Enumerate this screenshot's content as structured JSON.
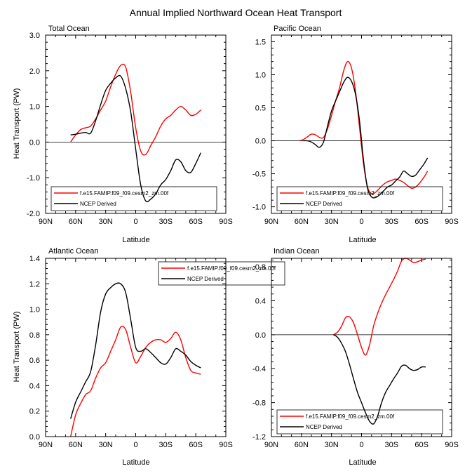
{
  "figure": {
    "title": "Annual Implied Northward Ocean Heat Transport"
  },
  "chart_data": [
    {
      "type": "line",
      "title": "Total Ocean",
      "xlabel": "Latitude",
      "ylabel": "Heat Transport (PW)",
      "xlim": [
        90,
        -90
      ],
      "ylim": [
        -2.0,
        3.0
      ],
      "xticks": [
        90,
        60,
        30,
        0,
        -30,
        -60,
        -90
      ],
      "xtick_labels": [
        "90N",
        "60N",
        "30N",
        "0",
        "30S",
        "60S",
        "90S"
      ],
      "yticks": [
        -2,
        -1,
        0,
        1,
        2,
        3
      ],
      "ytick_labels": [
        "-2.0",
        "-1.0",
        "0.0",
        "1.0",
        "2.0",
        "3.0"
      ],
      "zero_line": true,
      "legend": {
        "position": "bottom-left",
        "entries": [
          "f.e15.FAMIP.f09_f09.cesm2_zm.00f",
          "NCEP Derived"
        ]
      },
      "series": [
        {
          "name": "f.e15.FAMIP.f09_f09.cesm2_zm.00f",
          "color": "#ff0000",
          "x": [
            65,
            60,
            55,
            50,
            45,
            40,
            35,
            30,
            25,
            20,
            15,
            10,
            5,
            0,
            -5,
            -10,
            -15,
            -20,
            -25,
            -30,
            -35,
            -40,
            -45,
            -50,
            -55,
            -60,
            -65
          ],
          "y": [
            0.0,
            0.2,
            0.35,
            0.4,
            0.45,
            0.65,
            0.9,
            1.15,
            1.55,
            1.9,
            2.15,
            2.1,
            1.4,
            0.4,
            -0.25,
            -0.35,
            -0.1,
            0.15,
            0.45,
            0.65,
            0.75,
            0.9,
            1.0,
            0.9,
            0.75,
            0.78,
            0.9
          ]
        },
        {
          "name": "NCEP Derived",
          "color": "#000000",
          "x": [
            65,
            60,
            55,
            50,
            45,
            40,
            35,
            30,
            25,
            20,
            15,
            10,
            5,
            0,
            -5,
            -10,
            -15,
            -20,
            -25,
            -30,
            -35,
            -40,
            -45,
            -50,
            -55,
            -60,
            -65
          ],
          "y": [
            0.2,
            0.22,
            0.25,
            0.27,
            0.25,
            0.6,
            1.05,
            1.45,
            1.65,
            1.8,
            1.85,
            1.5,
            0.85,
            -0.2,
            -1.2,
            -1.65,
            -1.6,
            -1.45,
            -1.2,
            -1.05,
            -0.8,
            -0.5,
            -0.55,
            -0.8,
            -0.85,
            -0.6,
            -0.3
          ]
        }
      ]
    },
    {
      "type": "line",
      "title": "Pacific Ocean",
      "xlabel": "Latitude",
      "ylabel": "",
      "xlim": [
        90,
        -90
      ],
      "ylim": [
        -1.1,
        1.6
      ],
      "xticks": [
        90,
        60,
        30,
        0,
        -30,
        -60,
        -90
      ],
      "xtick_labels": [
        "90N",
        "60N",
        "30N",
        "0",
        "30S",
        "60S",
        "90S"
      ],
      "yticks": [
        -1,
        -0.5,
        0,
        0.5,
        1,
        1.5
      ],
      "ytick_labels": [
        "-1.0",
        "-0.5",
        "0.0",
        "0.5",
        "1.0",
        "1.5"
      ],
      "zero_line": true,
      "legend": {
        "position": "bottom-left",
        "entries": [
          "f.e15.FAMIP.f09_f09.cesm2_zm.00f",
          "NCEP Derived"
        ]
      },
      "series": [
        {
          "name": "f.e15.FAMIP.f09_f09.cesm2_zm.00f",
          "color": "#ff0000",
          "x": [
            62,
            58,
            54,
            50,
            46,
            42,
            38,
            34,
            30,
            26,
            22,
            18,
            14,
            10,
            6,
            2,
            -2,
            -6,
            -10,
            -14,
            -18,
            -22,
            -26,
            -30,
            -34,
            -38,
            -42,
            -46,
            -50,
            -54,
            -58,
            -62,
            -66
          ],
          "y": [
            0.0,
            0.02,
            0.06,
            0.1,
            0.09,
            0.05,
            0.05,
            0.18,
            0.38,
            0.6,
            0.8,
            1.05,
            1.2,
            1.1,
            0.75,
            0.2,
            -0.35,
            -0.7,
            -0.8,
            -0.78,
            -0.72,
            -0.66,
            -0.62,
            -0.6,
            -0.58,
            -0.6,
            -0.63,
            -0.68,
            -0.72,
            -0.7,
            -0.64,
            -0.56,
            -0.46
          ]
        },
        {
          "name": "NCEP Derived",
          "color": "#000000",
          "x": [
            58,
            54,
            50,
            46,
            42,
            38,
            34,
            30,
            26,
            22,
            18,
            14,
            10,
            6,
            2,
            -2,
            -6,
            -10,
            -14,
            -18,
            -22,
            -26,
            -30,
            -34,
            -38,
            -42,
            -46,
            -50,
            -54,
            -58,
            -62,
            -66
          ],
          "y": [
            0.0,
            0.0,
            -0.02,
            -0.06,
            -0.1,
            -0.02,
            0.22,
            0.45,
            0.6,
            0.74,
            0.88,
            0.96,
            0.9,
            0.7,
            0.3,
            -0.3,
            -0.72,
            -0.85,
            -0.86,
            -0.82,
            -0.76,
            -0.7,
            -0.67,
            -0.61,
            -0.55,
            -0.46,
            -0.5,
            -0.54,
            -0.52,
            -0.44,
            -0.36,
            -0.26
          ]
        }
      ]
    },
    {
      "type": "line",
      "title": "Atlantic Ocean",
      "xlabel": "Latitude",
      "ylabel": "Heat Transport (PW)",
      "xlim": [
        90,
        -90
      ],
      "ylim": [
        0.0,
        1.4
      ],
      "xticks": [
        90,
        60,
        30,
        0,
        -30,
        -60,
        -90
      ],
      "xtick_labels": [
        "90N",
        "60N",
        "30N",
        "0",
        "30S",
        "60S",
        "90S"
      ],
      "yticks": [
        0,
        0.2,
        0.4,
        0.6,
        0.8,
        1.0,
        1.2,
        1.4
      ],
      "ytick_labels": [
        "0.0",
        "0.2",
        "0.4",
        "0.6",
        "0.8",
        "1.0",
        "1.2",
        "1.4"
      ],
      "zero_line": false,
      "legend": {
        "position": "top-right",
        "entries": [
          "f.e15.FAMIP.f09_f09.cesm2_zm.00f",
          "NCEP Derived"
        ]
      },
      "series": [
        {
          "name": "f.e15.FAMIP.f09_f09.cesm2_zm.00f",
          "color": "#ff0000",
          "x": [
            65,
            60,
            55,
            50,
            45,
            40,
            35,
            30,
            25,
            20,
            15,
            10,
            5,
            0,
            -5,
            -10,
            -15,
            -20,
            -25,
            -30,
            -35,
            -40,
            -45,
            -50,
            -55,
            -60,
            -65
          ],
          "y": [
            0.0,
            0.17,
            0.26,
            0.33,
            0.36,
            0.46,
            0.54,
            0.58,
            0.67,
            0.76,
            0.86,
            0.84,
            0.7,
            0.58,
            0.63,
            0.7,
            0.74,
            0.76,
            0.76,
            0.74,
            0.77,
            0.82,
            0.76,
            0.62,
            0.52,
            0.5,
            0.49
          ]
        },
        {
          "name": "NCEP Derived",
          "color": "#000000",
          "x": [
            65,
            60,
            55,
            50,
            45,
            40,
            35,
            30,
            25,
            20,
            15,
            10,
            5,
            0,
            -5,
            -10,
            -15,
            -20,
            -25,
            -30,
            -35,
            -40,
            -45,
            -50,
            -55,
            -60,
            -65
          ],
          "y": [
            0.14,
            0.27,
            0.35,
            0.43,
            0.51,
            0.72,
            0.98,
            1.12,
            1.17,
            1.2,
            1.2,
            1.13,
            0.92,
            0.7,
            0.67,
            0.69,
            0.66,
            0.62,
            0.58,
            0.57,
            0.62,
            0.69,
            0.67,
            0.64,
            0.59,
            0.56,
            0.54
          ]
        }
      ]
    },
    {
      "type": "line",
      "title": "Indian Ocean",
      "xlabel": "Latitude",
      "ylabel": "",
      "xlim": [
        90,
        -90
      ],
      "ylim": [
        -1.2,
        0.9
      ],
      "xticks": [
        90,
        60,
        30,
        0,
        -30,
        -60,
        -90
      ],
      "xtick_labels": [
        "90N",
        "60N",
        "30N",
        "0",
        "30S",
        "60S",
        "90S"
      ],
      "yticks": [
        -1.2,
        -0.8,
        -0.4,
        0.0,
        0.4,
        0.8
      ],
      "ytick_labels": [
        "-1.2",
        "-0.8",
        "-0.4",
        "0.0",
        "0.4",
        "0.8"
      ],
      "zero_line": true,
      "legend": {
        "position": "bottom-left",
        "entries": [
          "f.e15.FAMIP.f09_f09.cesm2_zm.00f",
          "NCEP Derived"
        ]
      },
      "series": [
        {
          "name": "f.e15.FAMIP.f09_f09.cesm2_zm.00f",
          "color": "#ff0000",
          "x": [
            28,
            24,
            20,
            16,
            12,
            8,
            4,
            0,
            -4,
            -8,
            -12,
            -16,
            -20,
            -24,
            -28,
            -32,
            -36,
            -40,
            -44,
            -48,
            -52,
            -56,
            -60,
            -64
          ],
          "y": [
            0.0,
            0.03,
            0.1,
            0.2,
            0.21,
            0.14,
            0.0,
            -0.15,
            -0.24,
            -0.12,
            0.1,
            0.25,
            0.37,
            0.47,
            0.56,
            0.65,
            0.75,
            0.87,
            0.9,
            0.88,
            0.85,
            0.86,
            0.88,
            0.89
          ]
        },
        {
          "name": "NCEP Derived",
          "color": "#000000",
          "x": [
            28,
            24,
            20,
            16,
            12,
            8,
            4,
            0,
            -4,
            -8,
            -12,
            -16,
            -20,
            -24,
            -28,
            -32,
            -36,
            -40,
            -44,
            -48,
            -52,
            -56,
            -60,
            -64
          ],
          "y": [
            0.0,
            -0.03,
            -0.1,
            -0.2,
            -0.35,
            -0.52,
            -0.68,
            -0.8,
            -0.92,
            -1.02,
            -1.05,
            -0.96,
            -0.8,
            -0.68,
            -0.6,
            -0.52,
            -0.45,
            -0.37,
            -0.36,
            -0.4,
            -0.42,
            -0.41,
            -0.38,
            -0.38
          ]
        }
      ]
    }
  ]
}
